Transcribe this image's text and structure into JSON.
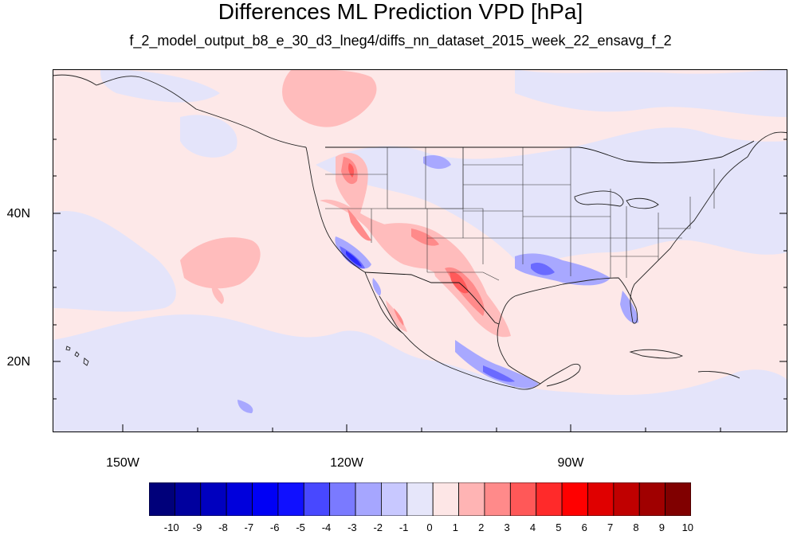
{
  "title": "Differences ML Prediction VPD [hPa]",
  "subtitle": "f_2_model_output_b8_e_30_d3_lneg4/diffs_nn_dataset_2015_week_22_ensavg_f_2",
  "map": {
    "projection": "cylindrical equidistant",
    "lon_range": [
      -160,
      -62
    ],
    "lat_range": [
      11,
      59.5
    ],
    "lat_labels": [
      "40N",
      "20N"
    ],
    "lon_labels": [
      "150W",
      "120W",
      "90W"
    ]
  },
  "colorbar": {
    "labels": [
      "-10",
      "-9",
      "-8",
      "-7",
      "-6",
      "-5",
      "-4",
      "-3",
      "-2",
      "-1",
      "0",
      "1",
      "2",
      "3",
      "4",
      "5",
      "6",
      "7",
      "8",
      "9",
      "10"
    ],
    "colors": [
      "#00007a",
      "#00009e",
      "#0000bf",
      "#0000dc",
      "#0000f5",
      "#1010ff",
      "#4848ff",
      "#7a7aff",
      "#a6a6ff",
      "#c8c8ff",
      "#e6e6fa",
      "#fde6e6",
      "#ffb4b4",
      "#ff8a8a",
      "#ff5858",
      "#ff2a2a",
      "#ff0000",
      "#e00000",
      "#c00000",
      "#a00000",
      "#800000"
    ]
  }
}
